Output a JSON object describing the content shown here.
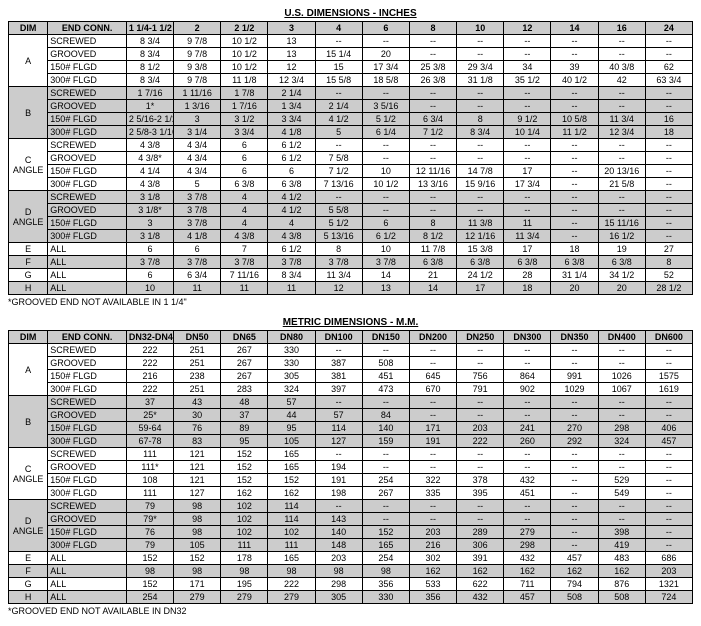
{
  "us": {
    "title": "U.S. DIMENSIONS - INCHES",
    "headers": [
      "DIM",
      "END CONN.",
      "1 1/4-1 1/2",
      "2",
      "2 1/2",
      "3",
      "4",
      "6",
      "8",
      "10",
      "12",
      "14",
      "16",
      "24"
    ],
    "groups": [
      {
        "dim": "A",
        "shaded": false,
        "rows": [
          {
            "end": "SCREWED",
            "v": [
              "8 3/4",
              "9 7/8",
              "10 1/2",
              "13",
              "--",
              "--",
              "--",
              "--",
              "--",
              "--",
              "--",
              "--"
            ]
          },
          {
            "end": "GROOVED",
            "v": [
              "8 3/4",
              "9 7/8",
              "10 1/2",
              "13",
              "15 1/4",
              "20",
              "--",
              "--",
              "--",
              "--",
              "--",
              "--"
            ]
          },
          {
            "end": "150# FLGD",
            "v": [
              "8 1/2",
              "9 3/8",
              "10 1/2",
              "12",
              "15",
              "17 3/4",
              "25 3/8",
              "29 3/4",
              "34",
              "39",
              "40 3/8",
              "62"
            ]
          },
          {
            "end": "300# FLGD",
            "v": [
              "8 3/4",
              "9 7/8",
              "11 1/8",
              "12 3/4",
              "15 5/8",
              "18 5/8",
              "26 3/8",
              "31 1/8",
              "35 1/2",
              "40 1/2",
              "42",
              "63 3/4"
            ]
          }
        ]
      },
      {
        "dim": "B",
        "shaded": true,
        "rows": [
          {
            "end": "SCREWED",
            "v": [
              "1  7/16",
              "1 11/16",
              "1 7/8",
              "2 1/4",
              "--",
              "--",
              "--",
              "--",
              "--",
              "--",
              "--",
              "--"
            ]
          },
          {
            "end": "GROOVED",
            "v": [
              "1*",
              "1  3/16",
              "1  7/16",
              "1 3/4",
              "2 1/4",
              "3  5/16",
              "--",
              "--",
              "--",
              "--",
              "--",
              "--"
            ]
          },
          {
            "end": "150# FLGD",
            "v": [
              "2 5/16-2 1/2",
              "3",
              "3 1/2",
              "3 3/4",
              "4 1/2",
              "5 1/2",
              "6 3/4",
              "8",
              "9 1/2",
              "10 5/8",
              "11 3/4",
              "16"
            ]
          },
          {
            "end": "300# FLGD",
            "v": [
              "2 5/8-3 1/16",
              "3 1/4",
              "3 3/4",
              "4 1/8",
              "5",
              "6 1/4",
              "7 1/2",
              "8 3/4",
              "10 1/4",
              "11 1/2",
              "12 3/4",
              "18"
            ]
          }
        ]
      },
      {
        "dim": "C\nANGLE",
        "shaded": false,
        "rows": [
          {
            "end": "SCREWED",
            "v": [
              "4 3/8",
              "4 3/4",
              "6",
              "6 1/2",
              "--",
              "--",
              "--",
              "--",
              "--",
              "--",
              "--",
              "--"
            ]
          },
          {
            "end": "GROOVED",
            "v": [
              "4 3/8*",
              "4 3/4",
              "6",
              "6 1/2",
              "7 5/8",
              "--",
              "--",
              "--",
              "--",
              "--",
              "--",
              "--"
            ]
          },
          {
            "end": "150# FLGD",
            "v": [
              "4 1/4",
              "4 3/4",
              "6",
              "6",
              "7 1/2",
              "10",
              "12 11/16",
              "14 7/8",
              "17",
              "--",
              "20 13/16",
              "--"
            ]
          },
          {
            "end": "300# FLGD",
            "v": [
              "4 3/8",
              "5",
              "6 3/8",
              "6 3/8",
              "7 13/16",
              "10 1/2",
              "13  3/16",
              "15  9/16",
              "17 3/4",
              "--",
              "21 5/8",
              "--"
            ]
          }
        ]
      },
      {
        "dim": "D\nANGLE",
        "shaded": true,
        "rows": [
          {
            "end": "SCREWED",
            "v": [
              "3 1/8",
              "3 7/8",
              "4",
              "4 1/2",
              "--",
              "--",
              "--",
              "--",
              "--",
              "--",
              "--",
              "--"
            ]
          },
          {
            "end": "GROOVED",
            "v": [
              "3 1/8*",
              "3 7/8",
              "4",
              "4 1/2",
              "5 5/8",
              "--",
              "--",
              "--",
              "--",
              "--",
              "--",
              "--"
            ]
          },
          {
            "end": "150# FLGD",
            "v": [
              "3",
              "3 7/8",
              "4",
              "4",
              "5  1/2",
              "6",
              "8",
              "11 3/8",
              "11",
              "--",
              "15 11/16",
              "--"
            ]
          },
          {
            "end": "300# FLGD",
            "v": [
              "3 1/8",
              "4 1/8",
              "4 3/8",
              "4 3/8",
              "5 13/16",
              "6 1/2",
              "8 1/2",
              "12  1/16",
              "11 3/4",
              "--",
              "16 1/2",
              "--"
            ]
          }
        ]
      },
      {
        "dim": "E",
        "shaded": false,
        "rows": [
          {
            "end": "ALL",
            "v": [
              "6",
              "6",
              "7",
              "6 1/2",
              "8",
              "10",
              "11 7/8",
              "15 3/8",
              "17",
              "18",
              "19",
              "27"
            ]
          }
        ]
      },
      {
        "dim": "F",
        "shaded": true,
        "rows": [
          {
            "end": "ALL",
            "v": [
              "3 7/8",
              "3 7/8",
              "3 7/8",
              "3 7/8",
              "3 7/8",
              "3 7/8",
              "6 3/8",
              "6 3/8",
              "6 3/8",
              "6 3/8",
              "6 3/8",
              "8"
            ]
          }
        ]
      },
      {
        "dim": "G",
        "shaded": false,
        "rows": [
          {
            "end": "ALL",
            "v": [
              "6",
              "6 3/4",
              "7 11/16",
              "8 3/4",
              "11 3/4",
              "14",
              "21",
              "24 1/2",
              "28",
              "31 1/4",
              "34 1/2",
              "52"
            ]
          }
        ]
      },
      {
        "dim": "H",
        "shaded": true,
        "rows": [
          {
            "end": "ALL",
            "v": [
              "10",
              "11",
              "11",
              "11",
              "12",
              "13",
              "14",
              "17",
              "18",
              "20",
              "20",
              "28 1/2"
            ]
          }
        ]
      }
    ],
    "footnote": "*GROOVED END NOT AVAILABLE IN 1 1/4\""
  },
  "metric": {
    "title": "METRIC DIMENSIONS - M.M.",
    "headers": [
      "DIM",
      "END CONN.",
      "DN32-DN40",
      "DN50",
      "DN65",
      "DN80",
      "DN100",
      "DN150",
      "DN200",
      "DN250",
      "DN300",
      "DN350",
      "DN400",
      "DN600"
    ],
    "groups": [
      {
        "dim": "A",
        "shaded": false,
        "rows": [
          {
            "end": "SCREWED",
            "v": [
              "222",
              "251",
              "267",
              "330",
              "--",
              "--",
              "--",
              "--",
              "--",
              "--",
              "--",
              "--"
            ]
          },
          {
            "end": "GROOVED",
            "v": [
              "222",
              "251",
              "267",
              "330",
              "387",
              "508",
              "--",
              "--",
              "--",
              "--",
              "--",
              "--"
            ]
          },
          {
            "end": "150# FLGD",
            "v": [
              "216",
              "238",
              "267",
              "305",
              "381",
              "451",
              "645",
              "756",
              "864",
              "991",
              "1026",
              "1575"
            ]
          },
          {
            "end": "300# FLGD",
            "v": [
              "222",
              "251",
              "283",
              "324",
              "397",
              "473",
              "670",
              "791",
              "902",
              "1029",
              "1067",
              "1619"
            ]
          }
        ]
      },
      {
        "dim": "B",
        "shaded": true,
        "rows": [
          {
            "end": "SCREWED",
            "v": [
              "37",
              "43",
              "48",
              "57",
              "--",
              "--",
              "--",
              "--",
              "--",
              "--",
              "--",
              "--"
            ]
          },
          {
            "end": "GROOVED",
            "v": [
              "25*",
              "30",
              "37",
              "44",
              "57",
              "84",
              "--",
              "--",
              "--",
              "--",
              "--",
              "--"
            ]
          },
          {
            "end": "150# FLGD",
            "v": [
              "59-64",
              "76",
              "89",
              "95",
              "114",
              "140",
              "171",
              "203",
              "241",
              "270",
              "298",
              "406"
            ]
          },
          {
            "end": "300# FLGD",
            "v": [
              "67-78",
              "83",
              "95",
              "105",
              "127",
              "159",
              "191",
              "222",
              "260",
              "292",
              "324",
              "457"
            ]
          }
        ]
      },
      {
        "dim": "C\nANGLE",
        "shaded": false,
        "rows": [
          {
            "end": "SCREWED",
            "v": [
              "111",
              "121",
              "152",
              "165",
              "--",
              "--",
              "--",
              "--",
              "--",
              "--",
              "--",
              "--"
            ]
          },
          {
            "end": "GROOVED",
            "v": [
              "111*",
              "121",
              "152",
              "165",
              "194",
              "--",
              "--",
              "--",
              "--",
              "--",
              "--",
              "--"
            ]
          },
          {
            "end": "150# FLGD",
            "v": [
              "108",
              "121",
              "152",
              "152",
              "191",
              "254",
              "322",
              "378",
              "432",
              "--",
              "529",
              "--"
            ]
          },
          {
            "end": "300# FLGD",
            "v": [
              "111",
              "127",
              "162",
              "162",
              "198",
              "267",
              "335",
              "395",
              "451",
              "--",
              "549",
              "--"
            ]
          }
        ]
      },
      {
        "dim": "D\nANGLE",
        "shaded": true,
        "rows": [
          {
            "end": "SCREWED",
            "v": [
              "79",
              "98",
              "102",
              "114",
              "--",
              "--",
              "--",
              "--",
              "--",
              "--",
              "--",
              "--"
            ]
          },
          {
            "end": "GROOVED",
            "v": [
              "79*",
              "98",
              "102",
              "114",
              "143",
              "--",
              "--",
              "--",
              "--",
              "--",
              "--",
              "--"
            ]
          },
          {
            "end": "150# FLGD",
            "v": [
              "76",
              "98",
              "102",
              "102",
              "140",
              "152",
              "203",
              "289",
              "279",
              "--",
              "398",
              "--"
            ]
          },
          {
            "end": "300# FLGD",
            "v": [
              "79",
              "105",
              "111",
              "111",
              "148",
              "165",
              "216",
              "306",
              "298",
              "--",
              "419",
              "--"
            ]
          }
        ]
      },
      {
        "dim": "E",
        "shaded": false,
        "rows": [
          {
            "end": "ALL",
            "v": [
              "152",
              "152",
              "178",
              "165",
              "203",
              "254",
              "302",
              "391",
              "432",
              "457",
              "483",
              "686"
            ]
          }
        ]
      },
      {
        "dim": "F",
        "shaded": true,
        "rows": [
          {
            "end": "ALL",
            "v": [
              "98",
              "98",
              "98",
              "98",
              "98",
              "98",
              "162",
              "162",
              "162",
              "162",
              "162",
              "203"
            ]
          }
        ]
      },
      {
        "dim": "G",
        "shaded": false,
        "rows": [
          {
            "end": "ALL",
            "v": [
              "152",
              "171",
              "195",
              "222",
              "298",
              "356",
              "533",
              "622",
              "711",
              "794",
              "876",
              "1321"
            ]
          }
        ]
      },
      {
        "dim": "H",
        "shaded": true,
        "rows": [
          {
            "end": "ALL",
            "v": [
              "254",
              "279",
              "279",
              "279",
              "305",
              "330",
              "356",
              "432",
              "457",
              "508",
              "508",
              "724"
            ]
          }
        ]
      }
    ],
    "footnote": "*GROOVED END NOT AVAILABLE IN DN32"
  }
}
